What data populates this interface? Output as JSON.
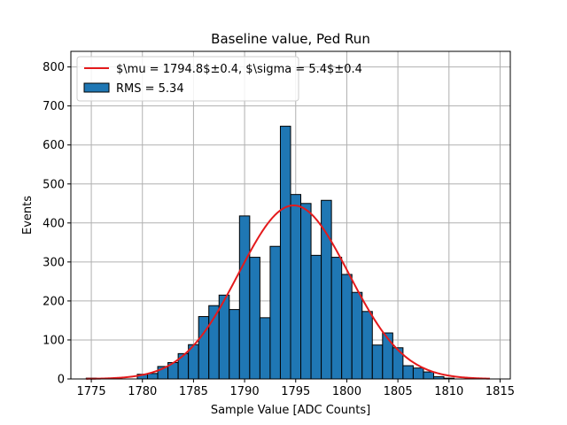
{
  "chart_data": {
    "type": "bar",
    "title": "Baseline value, Ped Run",
    "xlabel": "Sample Value [ADC Counts]",
    "ylabel": "Events",
    "xlim": [
      1773.0,
      1816.0
    ],
    "ylim": [
      0,
      840
    ],
    "xticks": [
      1775,
      1780,
      1785,
      1790,
      1795,
      1800,
      1805,
      1810,
      1815
    ],
    "yticks": [
      0,
      100,
      200,
      300,
      400,
      500,
      600,
      700,
      800
    ],
    "grid": true,
    "legend_position": "top-left",
    "bin_width": 1.0,
    "series": [
      {
        "name": "RMS = 5.34",
        "kind": "histogram",
        "color": "#1f77b4",
        "edge_color": "#000000",
        "bin_left_edges": [
          1774.5,
          1775.5,
          1776.5,
          1777.5,
          1778.5,
          1779.5,
          1780.5,
          1781.5,
          1782.5,
          1783.5,
          1784.5,
          1785.5,
          1786.5,
          1787.5,
          1788.5,
          1789.5,
          1790.5,
          1791.5,
          1792.5,
          1793.5,
          1794.5,
          1795.5,
          1796.5,
          1797.5,
          1798.5,
          1799.5,
          1800.5,
          1801.5,
          1802.5,
          1803.5,
          1804.5,
          1805.5,
          1806.5,
          1807.5,
          1808.5,
          1809.5
        ],
        "counts": [
          2,
          0,
          0,
          0,
          0,
          12,
          14,
          32,
          42,
          65,
          88,
          160,
          188,
          215,
          178,
          418,
          312,
          157,
          340,
          648,
          473,
          450,
          317,
          458,
          312,
          268,
          222,
          173,
          87,
          118,
          80,
          34,
          28,
          18,
          6,
          2
        ]
      },
      {
        "name": "$\\mu = 1794.8$±0.4, $\\sigma = 5.4$±0.4",
        "kind": "gaussian-fit",
        "color": "#e41a1c",
        "mu": 1794.8,
        "sigma": 5.4,
        "amplitude": 445,
        "x_range": [
          1774.5,
          1814.0
        ]
      }
    ]
  }
}
